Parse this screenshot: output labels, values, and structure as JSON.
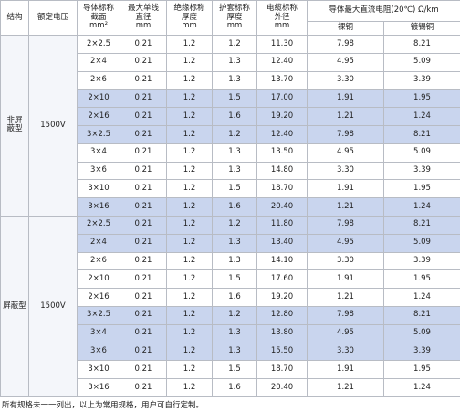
{
  "table": {
    "header": {
      "columns": [
        {
          "lines": [
            "结构"
          ]
        },
        {
          "lines": [
            "额定电压"
          ]
        },
        {
          "lines": [
            "导体标称",
            "截面",
            "mm²"
          ]
        },
        {
          "lines": [
            "最大单线",
            "直径",
            "mm"
          ]
        },
        {
          "lines": [
            "绝缘标称",
            "厚度",
            "mm"
          ]
        },
        {
          "lines": [
            "护套标称",
            "厚度",
            "mm"
          ]
        },
        {
          "lines": [
            "电缆标称",
            "外径",
            "mm"
          ]
        }
      ],
      "resistance": {
        "title": "导体最大直流电阻(20℃)",
        "unit": "Ω/km",
        "sub": [
          "裸铜",
          "镀锡铜"
        ]
      }
    },
    "groups": [
      {
        "structure": [
          "非屏",
          "蔽型"
        ],
        "voltage": "1500V",
        "shaded": [
          false,
          false,
          false,
          true,
          true,
          true,
          false,
          false,
          false,
          true
        ],
        "rows": [
          [
            "2×2.5",
            "0.21",
            "1.2",
            "1.2",
            "11.30",
            "7.98",
            "8.21"
          ],
          [
            "2×4",
            "0.21",
            "1.2",
            "1.3",
            "12.40",
            "4.95",
            "5.09"
          ],
          [
            "2×6",
            "0.21",
            "1.2",
            "1.3",
            "13.70",
            "3.30",
            "3.39"
          ],
          [
            "2×10",
            "0.21",
            "1.2",
            "1.5",
            "17.00",
            "1.91",
            "1.95"
          ],
          [
            "2×16",
            "0.21",
            "1.2",
            "1.6",
            "19.20",
            "1.21",
            "1.24"
          ],
          [
            "3×2.5",
            "0.21",
            "1.2",
            "1.2",
            "12.40",
            "7.98",
            "8.21"
          ],
          [
            "3×4",
            "0.21",
            "1.2",
            "1.3",
            "13.50",
            "4.95",
            "5.09"
          ],
          [
            "3×6",
            "0.21",
            "1.2",
            "1.3",
            "14.80",
            "3.30",
            "3.39"
          ],
          [
            "3×10",
            "0.21",
            "1.2",
            "1.5",
            "18.70",
            "1.91",
            "1.95"
          ],
          [
            "3×16",
            "0.21",
            "1.2",
            "1.6",
            "20.40",
            "1.21",
            "1.24"
          ]
        ]
      },
      {
        "structure": [
          "屏蔽型"
        ],
        "voltage": "1500V",
        "shaded": [
          true,
          true,
          false,
          false,
          false,
          true,
          true,
          true,
          false,
          false
        ],
        "rows": [
          [
            "2×2.5",
            "0.21",
            "1.2",
            "1.2",
            "11.80",
            "7.98",
            "8.21"
          ],
          [
            "2×4",
            "0.21",
            "1.2",
            "1.3",
            "13.40",
            "4.95",
            "5.09"
          ],
          [
            "2×6",
            "0.21",
            "1.2",
            "1.3",
            "14.10",
            "3.30",
            "3.39"
          ],
          [
            "2×10",
            "0.21",
            "1.2",
            "1.5",
            "17.60",
            "1.91",
            "1.95"
          ],
          [
            "2×16",
            "0.21",
            "1.2",
            "1.6",
            "19.20",
            "1.21",
            "1.24"
          ],
          [
            "3×2.5",
            "0.21",
            "1.2",
            "1.2",
            "12.80",
            "7.98",
            "8.21"
          ],
          [
            "3×4",
            "0.21",
            "1.2",
            "1.3",
            "13.80",
            "4.95",
            "5.09"
          ],
          [
            "3×6",
            "0.21",
            "1.2",
            "1.3",
            "15.50",
            "3.30",
            "3.39"
          ],
          [
            "3×10",
            "0.21",
            "1.2",
            "1.5",
            "18.70",
            "1.91",
            "1.95"
          ],
          [
            "3×16",
            "0.21",
            "1.2",
            "1.6",
            "20.40",
            "1.21",
            "1.24"
          ]
        ]
      }
    ]
  },
  "footnote": "所有规格未一一列出，以上为常用规格，用户可自行定制。"
}
